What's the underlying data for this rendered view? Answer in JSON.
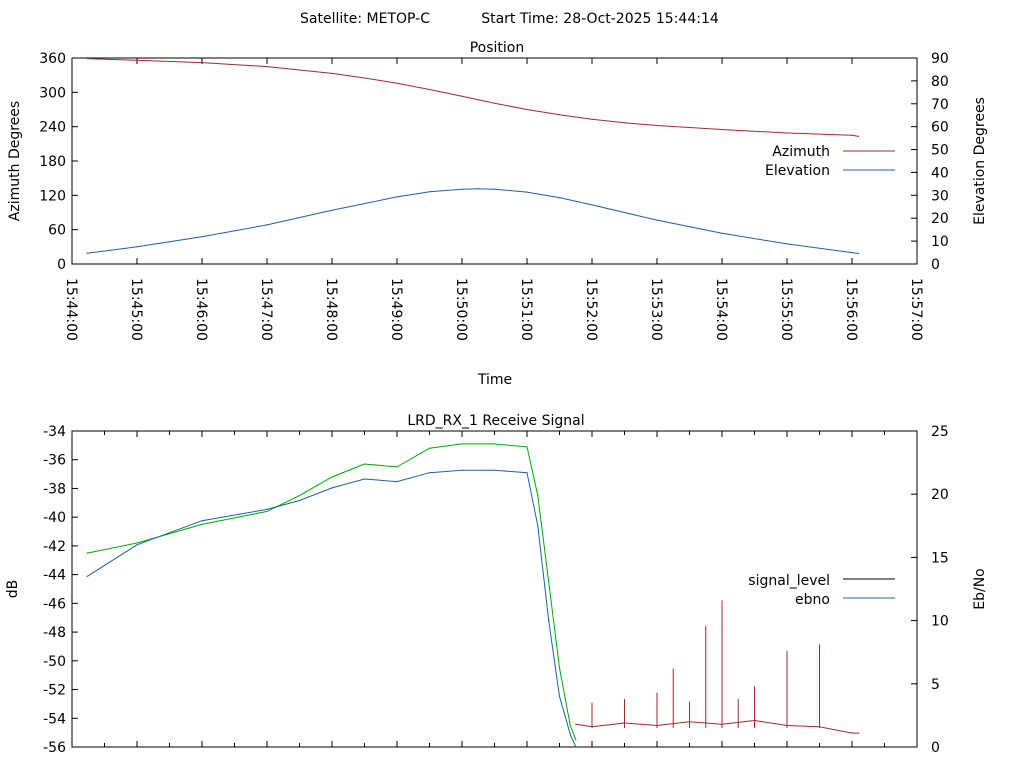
{
  "header": {
    "satellite": "Satellite: METOP-C",
    "start_time": "Start Time: 28-Oct-2025 15:44:14"
  },
  "chart_data": [
    {
      "type": "line",
      "title": "Position",
      "xlabel": "Time",
      "ylabel": "Azimuth Degrees",
      "y2label": "Elevation Degrees",
      "ylim": [
        0,
        360
      ],
      "y2lim": [
        0,
        90
      ],
      "yticks": [
        0,
        60,
        120,
        180,
        240,
        300,
        360
      ],
      "y2ticks": [
        0,
        10,
        20,
        30,
        40,
        50,
        60,
        70,
        80,
        90
      ],
      "xticks": [
        "15:44:00",
        "15:45:00",
        "15:46:00",
        "15:47:00",
        "15:48:00",
        "15:49:00",
        "15:50:00",
        "15:51:00",
        "15:52:00",
        "15:53:00",
        "15:54:00",
        "15:55:00",
        "15:56:00",
        "15:57:00"
      ],
      "legend_position": "right",
      "series": [
        {
          "name": "Azimuth",
          "axis": "left",
          "color": "#a52a2a",
          "x": [
            "15:44:14",
            "15:45:00",
            "15:46:00",
            "15:47:00",
            "15:48:00",
            "15:48:30",
            "15:49:00",
            "15:49:30",
            "15:50:00",
            "15:50:30",
            "15:51:00",
            "15:51:30",
            "15:52:00",
            "15:52:30",
            "15:53:00",
            "15:54:00",
            "15:55:00",
            "15:56:00",
            "15:56:06"
          ],
          "values": [
            359,
            356,
            352,
            345,
            333,
            325,
            316,
            305,
            293,
            281,
            270,
            261,
            253,
            247,
            242,
            235,
            229,
            225,
            223
          ]
        },
        {
          "name": "Elevation",
          "axis": "right",
          "color": "#1f5fa8",
          "x": [
            "15:44:14",
            "15:45:00",
            "15:46:00",
            "15:47:00",
            "15:48:00",
            "15:49:00",
            "15:49:30",
            "15:50:00",
            "15:50:15",
            "15:50:30",
            "15:51:00",
            "15:51:30",
            "15:52:00",
            "15:53:00",
            "15:54:00",
            "15:55:00",
            "15:56:00",
            "15:56:06"
          ],
          "values": [
            4.7,
            7.5,
            11.9,
            17.1,
            23.5,
            29.3,
            31.6,
            32.7,
            32.9,
            32.7,
            31.4,
            29.0,
            25.8,
            19.2,
            13.4,
            8.8,
            5.0,
            4.6
          ]
        }
      ]
    },
    {
      "type": "line",
      "title": "LRD_RX_1 Receive Signal",
      "xlabel": "",
      "ylabel": "dB",
      "y2label": "Eb/No",
      "ylim": [
        -56,
        -34
      ],
      "y2lim": [
        0,
        25
      ],
      "yticks": [
        -56,
        -54,
        -52,
        -50,
        -48,
        -46,
        -44,
        -42,
        -40,
        -38,
        -36,
        -34
      ],
      "y2ticks": [
        0,
        5,
        10,
        15,
        20,
        25
      ],
      "legend_position": "right",
      "series": [
        {
          "name": "signal_level",
          "axis": "left",
          "color": "#00aa00",
          "x": [
            "15:44:14",
            "15:45:00",
            "15:46:00",
            "15:47:00",
            "15:47:30",
            "15:48:00",
            "15:48:30",
            "15:49:00",
            "15:49:30",
            "15:50:00",
            "15:50:30",
            "15:51:00",
            "15:51:10",
            "15:51:20",
            "15:51:30",
            "15:51:40",
            "15:51:45"
          ],
          "values": [
            -42.5,
            -41.8,
            -40.5,
            -39.6,
            -38.5,
            -37.2,
            -36.3,
            -36.5,
            -35.2,
            -34.9,
            -34.9,
            -35.1,
            -38.5,
            -44.5,
            -50.5,
            -54.5,
            -55.5
          ]
        },
        {
          "name": "ebno",
          "axis": "right",
          "color": "#1f5fa8",
          "x": [
            "15:44:14",
            "15:45:00",
            "15:46:00",
            "15:47:00",
            "15:47:30",
            "15:48:00",
            "15:48:30",
            "15:49:00",
            "15:49:30",
            "15:50:00",
            "15:50:30",
            "15:51:00",
            "15:51:10",
            "15:51:20",
            "15:51:30",
            "15:51:40",
            "15:51:45"
          ],
          "values": [
            13.5,
            16.0,
            17.9,
            18.8,
            19.5,
            20.5,
            21.2,
            21.0,
            21.7,
            21.9,
            21.9,
            21.7,
            17.5,
            10.0,
            4.0,
            1.0,
            0.0
          ]
        },
        {
          "name": "",
          "axis": "right",
          "color": "#a52a2a",
          "x": [
            "15:51:45",
            "15:52:00",
            "15:52:30",
            "15:53:00",
            "15:53:30",
            "15:54:00",
            "15:54:30",
            "15:55:00",
            "15:55:30",
            "15:56:00",
            "15:56:06"
          ],
          "values": [
            1.8,
            1.6,
            1.9,
            1.7,
            2.0,
            1.8,
            2.1,
            1.7,
            1.6,
            1.1,
            1.1
          ]
        },
        {
          "name": "",
          "axis": "right",
          "color": "#a52a2a",
          "marks": "spikes",
          "x": [
            "15:52:00",
            "15:52:30",
            "15:53:00",
            "15:53:15",
            "15:53:30",
            "15:53:45",
            "15:54:00",
            "15:54:15",
            "15:54:30",
            "15:55:00",
            "15:55:30"
          ],
          "values": [
            3.5,
            3.8,
            4.3,
            6.2,
            3.6,
            9.6,
            11.6,
            3.8,
            4.8,
            7.6,
            8.1
          ]
        }
      ]
    }
  ]
}
